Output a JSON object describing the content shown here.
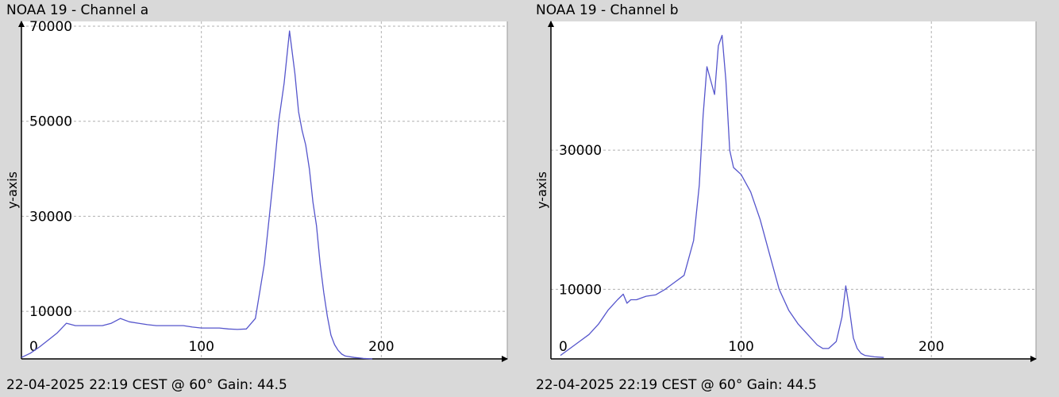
{
  "chart_data": [
    {
      "type": "line",
      "title": "NOAA 19 - Channel a",
      "footer": "22-04-2025 22:19 CEST @ 60° Gain: 44.5",
      "ylabel": "y-axis",
      "xlabel": "",
      "xlim": [
        0,
        270
      ],
      "ylim": [
        0,
        71000
      ],
      "x_ticks": [
        0,
        100,
        200
      ],
      "x_tick_labels": [
        "0",
        "100",
        "200"
      ],
      "y_ticks": [
        10000,
        30000,
        50000,
        70000
      ],
      "y_tick_labels": [
        "10000",
        "30000",
        "50000",
        "70000"
      ],
      "grid": true,
      "line_color": "#5555cc",
      "series": [
        {
          "x": [
            0,
            5,
            10,
            15,
            20,
            25,
            30,
            35,
            40,
            45,
            50,
            55,
            60,
            65,
            70,
            75,
            80,
            85,
            90,
            95,
            100,
            105,
            110,
            115,
            120,
            125,
            130,
            135,
            140,
            143,
            146,
            149,
            152,
            154,
            156,
            158,
            160,
            162,
            164,
            166,
            168,
            170,
            172,
            174,
            176,
            178,
            180,
            185,
            190,
            195
          ],
          "y": [
            300,
            1200,
            2500,
            4000,
            5500,
            7500,
            7000,
            7000,
            7000,
            7000,
            7500,
            8500,
            7800,
            7500,
            7200,
            7000,
            7000,
            7000,
            7000,
            6700,
            6500,
            6500,
            6500,
            6300,
            6200,
            6300,
            8500,
            20000,
            38000,
            50000,
            58000,
            69000,
            60000,
            52000,
            48000,
            45000,
            40000,
            33000,
            28000,
            20000,
            14000,
            9000,
            5000,
            3000,
            1800,
            1000,
            600,
            300,
            100,
            0
          ]
        }
      ]
    },
    {
      "type": "line",
      "title": "NOAA 19 - Channel b",
      "footer": "22-04-2025 22:19 CEST @ 60° Gain: 44.5",
      "ylabel": "y-axis",
      "xlabel": "",
      "xlim": [
        0,
        255
      ],
      "ylim": [
        0,
        48500
      ],
      "x_ticks": [
        0,
        100,
        200
      ],
      "x_tick_labels": [
        "0",
        "100",
        "200"
      ],
      "y_ticks": [
        10000,
        30000
      ],
      "y_tick_labels": [
        "10000",
        "30000"
      ],
      "grid": true,
      "line_color": "#5555cc",
      "series": [
        {
          "x": [
            5,
            10,
            15,
            20,
            25,
            30,
            35,
            38,
            40,
            42,
            45,
            50,
            55,
            60,
            65,
            70,
            75,
            78,
            80,
            82,
            84,
            86,
            88,
            90,
            92,
            94,
            96,
            98,
            100,
            105,
            110,
            115,
            120,
            125,
            130,
            135,
            140,
            143,
            146,
            150,
            153,
            155,
            157,
            159,
            161,
            163,
            165,
            170,
            175
          ],
          "y": [
            500,
            1500,
            2500,
            3500,
            5000,
            7000,
            8500,
            9300,
            8000,
            8500,
            8500,
            9000,
            9200,
            10000,
            11000,
            12000,
            17000,
            25000,
            35000,
            42000,
            40000,
            38000,
            45000,
            46500,
            40000,
            30000,
            27500,
            27000,
            26500,
            24000,
            20000,
            15000,
            10000,
            7000,
            5000,
            3500,
            2000,
            1500,
            1500,
            2500,
            6000,
            10500,
            7000,
            3000,
            1500,
            800,
            500,
            300,
            200
          ]
        }
      ]
    }
  ]
}
